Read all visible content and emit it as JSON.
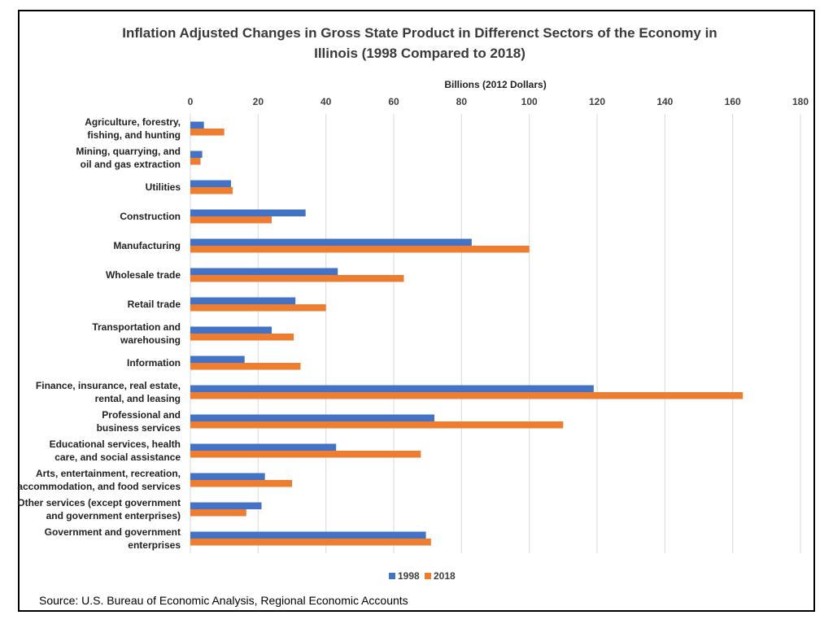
{
  "source": "Source: U.S. Bureau of Economic Analysis, Regional Economic Accounts",
  "chart_data": {
    "type": "bar",
    "orientation": "horizontal",
    "title_lines": [
      "Inflation Adjusted Changes in Gross State Product in Differenct Sectors of the Economy in",
      "Illinois (1998 Compared to 2018)"
    ],
    "xlabel": "Billions (2012 Dollars)",
    "ylabel": "",
    "xlim": [
      0,
      180
    ],
    "x_ticks": [
      "0",
      "20",
      "40",
      "60",
      "80",
      "100",
      "120",
      "140",
      "160",
      "180"
    ],
    "grid": "vertical",
    "legend_position": "bottom",
    "categories": [
      [
        "Agriculture, forestry,",
        "fishing, and hunting"
      ],
      [
        "Mining, quarrying, and",
        "oil and gas extraction"
      ],
      [
        "Utilities"
      ],
      [
        "Construction"
      ],
      [
        "Manufacturing"
      ],
      [
        "Wholesale trade"
      ],
      [
        "Retail trade"
      ],
      [
        "Transportation and",
        "warehousing"
      ],
      [
        "Information"
      ],
      [
        "Finance, insurance, real estate,",
        "rental, and leasing"
      ],
      [
        "Professional and",
        "business services"
      ],
      [
        "Educational services, health",
        "care, and social assistance"
      ],
      [
        "Arts, entertainment, recreation,",
        "accommodation, and food services"
      ],
      [
        "Other services (except government",
        "and government enterprises)"
      ],
      [
        "Government and government",
        "enterprises"
      ]
    ],
    "series": [
      {
        "name": "1998",
        "color": "#4472C4",
        "values": [
          4,
          3.5,
          12,
          34,
          83,
          43.5,
          31,
          24,
          16,
          119,
          72,
          43,
          22,
          21,
          69.5
        ]
      },
      {
        "name": "2018",
        "color": "#ED7D31",
        "values": [
          10,
          3,
          12.5,
          24,
          100,
          63,
          40,
          30.5,
          32.5,
          163,
          110,
          68,
          30,
          16.5,
          71
        ]
      }
    ]
  }
}
